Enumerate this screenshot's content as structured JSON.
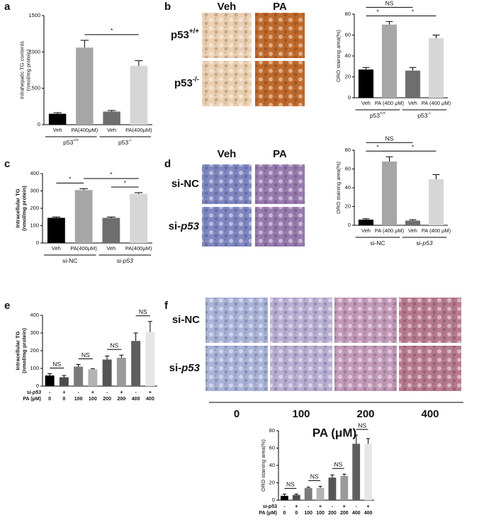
{
  "panel_labels": [
    "a",
    "b",
    "c",
    "d",
    "e",
    "f"
  ],
  "images": [
    {
      "columns": [
        "Veh",
        "PA"
      ],
      "rows": [
        {
          "text": "p53",
          "sup": "+/+"
        },
        {
          "text": "p53",
          "sup": "-/-"
        }
      ]
    },
    {
      "columns": [
        "Veh",
        "PA"
      ],
      "rows": [
        {
          "text": "si-NC"
        },
        {
          "text": "si-",
          "italic": "p53"
        }
      ]
    },
    {
      "columns": [
        "0",
        "100",
        "200",
        "400"
      ],
      "rows": [
        {
          "text": "si-NC"
        },
        {
          "text": "si-",
          "italic": "p53"
        }
      ],
      "axis_label": "PA (μM)"
    }
  ],
  "chart_data": [
    {
      "type": "bar",
      "ylabel": [
        "Intrahepatic TG contents",
        "(nmol/mg protein)"
      ],
      "categories": [
        "Veh",
        "PA(400μM)",
        "Veh",
        "PA(400μM)"
      ],
      "values": [
        150,
        1060,
        180,
        810
      ],
      "errors": [
        15,
        100,
        15,
        70
      ],
      "colors": [
        "#000000",
        "#a6a6a6",
        "#6e6e6e",
        "#d6d6d6"
      ],
      "ylim": [
        0,
        1500
      ],
      "yticks": [
        0,
        500,
        1000,
        1500
      ],
      "groups": [
        {
          "text": "p53",
          "sup": "+/+",
          "span": [
            0,
            1
          ]
        },
        {
          "text": "p53",
          "sup": "-/-",
          "span": [
            2,
            3
          ]
        }
      ],
      "annotations": [
        {
          "label": "*",
          "span": [
            1,
            3
          ]
        }
      ]
    },
    {
      "type": "bar",
      "ylabel": [
        "ORO staining area(%)"
      ],
      "categories": [
        "Veh",
        "PA (400 μM)",
        "Veh",
        "PA (400 μM)"
      ],
      "values": [
        27,
        70,
        26,
        57
      ],
      "errors": [
        2,
        3,
        3,
        3
      ],
      "colors": [
        "#000000",
        "#a6a6a6",
        "#6e6e6e",
        "#d6d6d6"
      ],
      "ylim": [
        0,
        80
      ],
      "yticks": [
        0,
        20,
        40,
        60,
        80
      ],
      "groups": [
        {
          "text": "p53",
          "sup": "+/+",
          "span": [
            0,
            1
          ]
        },
        {
          "text": "p53",
          "sup": "-/-",
          "span": [
            2,
            3
          ]
        }
      ],
      "annotations": [
        {
          "label": "*",
          "span": [
            0,
            1
          ]
        },
        {
          "label": "*",
          "span": [
            1,
            3
          ]
        },
        {
          "label": "NS",
          "span": [
            0,
            2
          ]
        }
      ]
    },
    {
      "type": "bar",
      "ylabel": [
        "Intracellular TG",
        "(nmol/mg protein)"
      ],
      "categories": [
        "Veh",
        "PA(400μM)",
        "Veh",
        "PA(400μM)"
      ],
      "values": [
        145,
        305,
        145,
        283
      ],
      "errors": [
        5,
        8,
        5,
        7
      ],
      "colors": [
        "#000000",
        "#a6a6a6",
        "#6e6e6e",
        "#d6d6d6"
      ],
      "ylim": [
        0,
        400
      ],
      "yticks": [
        0,
        100,
        200,
        300,
        400
      ],
      "groups": [
        {
          "text": "si-NC",
          "span": [
            0,
            1
          ]
        },
        {
          "text": "si-",
          "italic": "p53",
          "span": [
            2,
            3
          ]
        }
      ],
      "annotations": [
        {
          "label": "*",
          "span": [
            0,
            1
          ]
        },
        {
          "label": "*",
          "span": [
            2,
            3
          ]
        },
        {
          "label": "*",
          "span": [
            1,
            3
          ]
        }
      ]
    },
    {
      "type": "bar",
      "ylabel": [
        "ORO staining area(%)"
      ],
      "categories": [
        "Veh",
        "PA (400 μM)",
        "Veh",
        "PA (400 μM)"
      ],
      "values": [
        6,
        68,
        5,
        49
      ],
      "errors": [
        1,
        5,
        1,
        5
      ],
      "colors": [
        "#000000",
        "#a6a6a6",
        "#6e6e6e",
        "#d6d6d6"
      ],
      "ylim": [
        0,
        80
      ],
      "yticks": [
        0,
        20,
        40,
        60,
        80
      ],
      "groups": [
        {
          "text": "si-NC",
          "span": [
            0,
            1
          ]
        },
        {
          "text": "si-",
          "italic": "p53",
          "span": [
            2,
            3
          ]
        }
      ],
      "annotations": [
        {
          "label": "*",
          "span": [
            0,
            1
          ]
        },
        {
          "label": "*",
          "span": [
            1,
            3
          ]
        },
        {
          "label": "NS",
          "span": [
            0,
            2
          ]
        }
      ]
    },
    {
      "type": "bar",
      "ylabel": [
        "Intracellular TG",
        "(nmol/mg protein)"
      ],
      "values": [
        60,
        50,
        110,
        95,
        150,
        160,
        255,
        305
      ],
      "errors": [
        10,
        10,
        12,
        4,
        20,
        15,
        45,
        60
      ],
      "colors": [
        "#000000",
        "#4d4d4d",
        "#7a7a7a",
        "#b3b3b3",
        "#555555",
        "#9a9a9a",
        "#5e5e5e",
        "#e6e6e6"
      ],
      "ylim": [
        0,
        400
      ],
      "yticks": [
        0,
        100,
        200,
        300,
        400
      ],
      "rows": [
        {
          "name": {
            "text": "si-",
            "italic": "p53"
          },
          "labels": [
            "-",
            "+",
            "-",
            "+",
            "-",
            "+",
            "-",
            "+"
          ]
        },
        {
          "name": {
            "text": "PA (μM)"
          },
          "labels": [
            "0",
            "0",
            "100",
            "100",
            "200",
            "200",
            "400",
            "400"
          ]
        }
      ],
      "annotations": [
        {
          "label": "NS",
          "span": [
            0,
            1
          ]
        },
        {
          "label": "NS",
          "span": [
            2,
            3
          ]
        },
        {
          "label": "NS",
          "span": [
            4,
            5
          ]
        },
        {
          "label": "NS",
          "span": [
            6,
            7
          ]
        }
      ]
    },
    {
      "type": "bar",
      "ylabel": [
        "ORO staining area(%)"
      ],
      "values": [
        5,
        6,
        14,
        14,
        26,
        28,
        65,
        65
      ],
      "errors": [
        2,
        1,
        1,
        2,
        3,
        2,
        10,
        6
      ],
      "colors": [
        "#000000",
        "#4d4d4d",
        "#7a7a7a",
        "#b3b3b3",
        "#555555",
        "#9a9a9a",
        "#5e5e5e",
        "#e6e6e6"
      ],
      "ylim": [
        0,
        80
      ],
      "yticks": [
        0,
        20,
        40,
        60,
        80
      ],
      "rows": [
        {
          "name": {
            "text": "si-p53"
          },
          "labels": [
            "-",
            "+",
            "-",
            "+",
            "-",
            "+",
            "-",
            "+"
          ]
        },
        {
          "name": {
            "text": "PA (μM)"
          },
          "labels": [
            "0",
            "0",
            "100",
            "100",
            "200",
            "200",
            "400",
            "400"
          ]
        }
      ],
      "annotations": [
        {
          "label": "NS",
          "span": [
            0,
            1
          ]
        },
        {
          "label": "NS",
          "span": [
            2,
            3
          ]
        },
        {
          "label": "NS",
          "span": [
            4,
            5
          ]
        },
        {
          "label": "NS",
          "span": [
            6,
            7
          ]
        }
      ]
    }
  ]
}
